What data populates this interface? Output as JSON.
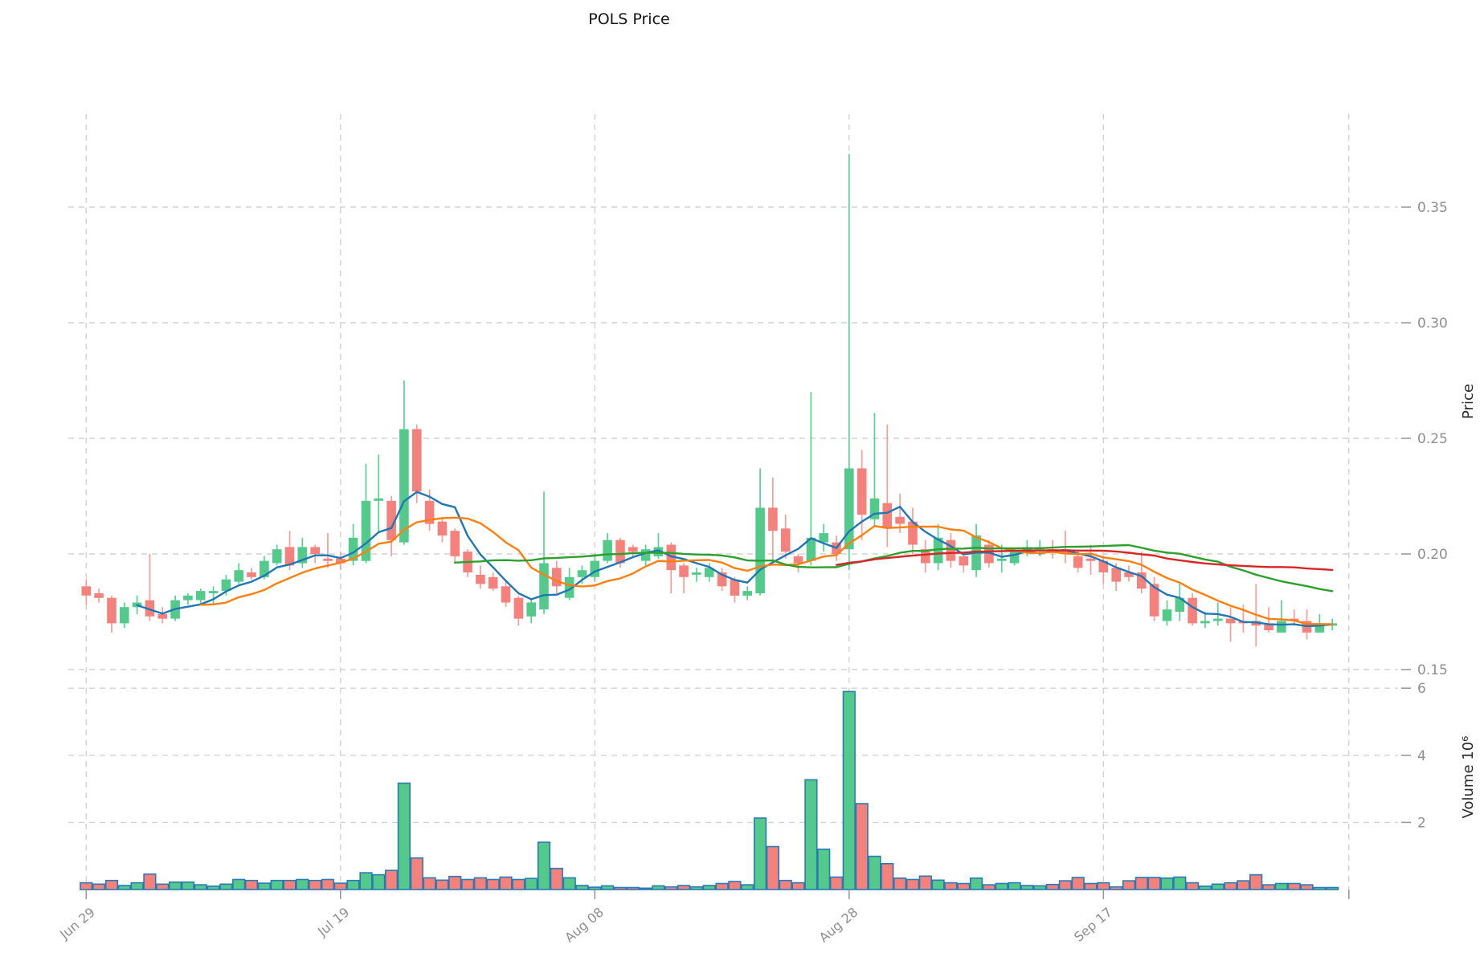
{
  "title": "POLS Price",
  "axes": {
    "price_label": "Price",
    "volume_label": "Volume  10⁶",
    "price_ticks": [
      {
        "value": 0.15,
        "label": "0.15"
      },
      {
        "value": 0.2,
        "label": "0.20"
      },
      {
        "value": 0.25,
        "label": "0.25"
      },
      {
        "value": 0.3,
        "label": "0.30"
      },
      {
        "value": 0.35,
        "label": "0.35"
      }
    ],
    "volume_ticks": [
      {
        "value": 2,
        "label": "2"
      },
      {
        "value": 4,
        "label": "4"
      },
      {
        "value": 6,
        "label": "6"
      }
    ],
    "x_ticks": [
      {
        "index": 0,
        "label": "Jun 29"
      },
      {
        "index": 20,
        "label": "Jul 19"
      },
      {
        "index": 40,
        "label": "Aug 08"
      },
      {
        "index": 60,
        "label": "Aug 28"
      },
      {
        "index": 80,
        "label": "Sep 17"
      },
      {
        "index": 99.3,
        "label": ""
      }
    ]
  },
  "colors": {
    "up_body": "#53ca8b",
    "up_wick": "#55d394",
    "down_body": "#f4817b",
    "down_wick": "#f59d98",
    "volume_edge": "#2a7ab5",
    "grid": "#d2d2d2",
    "tick_text": "#8e8e8e",
    "ma5": "#1f77b4",
    "ma10": "#ff7f0e",
    "ma30": "#2ca02c",
    "ma60": "#d62728"
  },
  "chart_data": {
    "type": "candlestick+volume",
    "title": "POLS Price",
    "ylabel_price": "Price",
    "ylabel_volume": "Volume 10^6",
    "price_ylim": [
      0.145,
      0.395
    ],
    "volume_ylim_millions": [
      0,
      6.6
    ],
    "grid": true,
    "moving_averages": [
      {
        "period": 5,
        "color": "#1f77b4"
      },
      {
        "period": 10,
        "color": "#ff7f0e"
      },
      {
        "period": 30,
        "color": "#2ca02c"
      },
      {
        "period": 60,
        "color": "#d62728"
      }
    ],
    "dates": [
      "Jun 29",
      "Jun 30",
      "Jul 01",
      "Jul 02",
      "Jul 03",
      "Jul 04",
      "Jul 05",
      "Jul 06",
      "Jul 07",
      "Jul 08",
      "Jul 09",
      "Jul 10",
      "Jul 11",
      "Jul 12",
      "Jul 13",
      "Jul 14",
      "Jul 15",
      "Jul 16",
      "Jul 17",
      "Jul 18",
      "Jul 19",
      "Jul 20",
      "Jul 21",
      "Jul 22",
      "Jul 23",
      "Jul 24",
      "Jul 25",
      "Jul 26",
      "Jul 27",
      "Jul 28",
      "Jul 29",
      "Jul 30",
      "Jul 31",
      "Aug 01",
      "Aug 02",
      "Aug 03",
      "Aug 04",
      "Aug 05",
      "Aug 06",
      "Aug 07",
      "Aug 08",
      "Aug 09",
      "Aug 10",
      "Aug 11",
      "Aug 12",
      "Aug 13",
      "Aug 14",
      "Aug 15",
      "Aug 16",
      "Aug 17",
      "Aug 18",
      "Aug 19",
      "Aug 20",
      "Aug 21",
      "Aug 22",
      "Aug 23",
      "Aug 24",
      "Aug 25",
      "Aug 26",
      "Aug 27",
      "Aug 28",
      "Aug 29",
      "Aug 30",
      "Aug 31",
      "Sep 01",
      "Sep 02",
      "Sep 03",
      "Sep 04",
      "Sep 05",
      "Sep 06",
      "Sep 07",
      "Sep 08",
      "Sep 09",
      "Sep 10",
      "Sep 11",
      "Sep 12",
      "Sep 13",
      "Sep 14",
      "Sep 15",
      "Sep 16",
      "Sep 17",
      "Sep 18",
      "Sep 19",
      "Sep 20",
      "Sep 21",
      "Sep 22",
      "Sep 23",
      "Sep 24",
      "Sep 25",
      "Sep 26",
      "Sep 27",
      "Sep 28",
      "Sep 29",
      "Sep 30",
      "Oct 01",
      "Oct 02",
      "Oct 03",
      "Oct 04",
      "Oct 05"
    ],
    "ohlc": [
      [
        0.186,
        0.189,
        0.178,
        0.182
      ],
      [
        0.183,
        0.185,
        0.179,
        0.181
      ],
      [
        0.181,
        0.182,
        0.166,
        0.17
      ],
      [
        0.17,
        0.179,
        0.168,
        0.177
      ],
      [
        0.177,
        0.182,
        0.174,
        0.179
      ],
      [
        0.18,
        0.2,
        0.171,
        0.173
      ],
      [
        0.174,
        0.177,
        0.17,
        0.172
      ],
      [
        0.172,
        0.182,
        0.171,
        0.18
      ],
      [
        0.18,
        0.183,
        0.178,
        0.182
      ],
      [
        0.18,
        0.185,
        0.178,
        0.184
      ],
      [
        0.183,
        0.186,
        0.178,
        0.184
      ],
      [
        0.184,
        0.191,
        0.182,
        0.189
      ],
      [
        0.188,
        0.196,
        0.187,
        0.193
      ],
      [
        0.192,
        0.194,
        0.189,
        0.19
      ],
      [
        0.19,
        0.199,
        0.189,
        0.197
      ],
      [
        0.196,
        0.204,
        0.195,
        0.202
      ],
      [
        0.203,
        0.21,
        0.193,
        0.195
      ],
      [
        0.196,
        0.207,
        0.194,
        0.203
      ],
      [
        0.203,
        0.204,
        0.196,
        0.2
      ],
      [
        0.198,
        0.209,
        0.194,
        0.197
      ],
      [
        0.198,
        0.201,
        0.193,
        0.196
      ],
      [
        0.197,
        0.213,
        0.195,
        0.207
      ],
      [
        0.197,
        0.239,
        0.196,
        0.223
      ],
      [
        0.223,
        0.243,
        0.209,
        0.224
      ],
      [
        0.223,
        0.225,
        0.199,
        0.206
      ],
      [
        0.205,
        0.275,
        0.204,
        0.254
      ],
      [
        0.254,
        0.256,
        0.222,
        0.227
      ],
      [
        0.223,
        0.228,
        0.21,
        0.213
      ],
      [
        0.214,
        0.216,
        0.205,
        0.208
      ],
      [
        0.21,
        0.211,
        0.196,
        0.199
      ],
      [
        0.201,
        0.202,
        0.19,
        0.192
      ],
      [
        0.191,
        0.195,
        0.185,
        0.187
      ],
      [
        0.19,
        0.192,
        0.184,
        0.185
      ],
      [
        0.186,
        0.188,
        0.177,
        0.179
      ],
      [
        0.181,
        0.182,
        0.169,
        0.172
      ],
      [
        0.173,
        0.18,
        0.17,
        0.179
      ],
      [
        0.176,
        0.227,
        0.174,
        0.196
      ],
      [
        0.194,
        0.197,
        0.183,
        0.186
      ],
      [
        0.181,
        0.194,
        0.18,
        0.19
      ],
      [
        0.19,
        0.195,
        0.187,
        0.193
      ],
      [
        0.19,
        0.2,
        0.188,
        0.197
      ],
      [
        0.197,
        0.209,
        0.196,
        0.206
      ],
      [
        0.206,
        0.207,
        0.194,
        0.196
      ],
      [
        0.203,
        0.204,
        0.199,
        0.201
      ],
      [
        0.197,
        0.204,
        0.195,
        0.202
      ],
      [
        0.199,
        0.209,
        0.198,
        0.203
      ],
      [
        0.204,
        0.205,
        0.183,
        0.193
      ],
      [
        0.195,
        0.196,
        0.183,
        0.19
      ],
      [
        0.191,
        0.194,
        0.188,
        0.192
      ],
      [
        0.19,
        0.196,
        0.188,
        0.194
      ],
      [
        0.192,
        0.194,
        0.184,
        0.186
      ],
      [
        0.189,
        0.19,
        0.179,
        0.182
      ],
      [
        0.182,
        0.186,
        0.18,
        0.184
      ],
      [
        0.183,
        0.237,
        0.182,
        0.22
      ],
      [
        0.22,
        0.233,
        0.196,
        0.21
      ],
      [
        0.211,
        0.217,
        0.198,
        0.201
      ],
      [
        0.199,
        0.2,
        0.192,
        0.196
      ],
      [
        0.197,
        0.27,
        0.195,
        0.207
      ],
      [
        0.205,
        0.213,
        0.201,
        0.209
      ],
      [
        0.205,
        0.208,
        0.197,
        0.2
      ],
      [
        0.202,
        0.373,
        0.193,
        0.237
      ],
      [
        0.237,
        0.245,
        0.206,
        0.217
      ],
      [
        0.215,
        0.261,
        0.212,
        0.224
      ],
      [
        0.222,
        0.256,
        0.203,
        0.211
      ],
      [
        0.216,
        0.226,
        0.209,
        0.213
      ],
      [
        0.214,
        0.22,
        0.2,
        0.204
      ],
      [
        0.202,
        0.206,
        0.192,
        0.196
      ],
      [
        0.196,
        0.213,
        0.193,
        0.207
      ],
      [
        0.206,
        0.209,
        0.194,
        0.197
      ],
      [
        0.199,
        0.2,
        0.192,
        0.195
      ],
      [
        0.193,
        0.213,
        0.19,
        0.208
      ],
      [
        0.204,
        0.206,
        0.194,
        0.196
      ],
      [
        0.197,
        0.204,
        0.192,
        0.198
      ],
      [
        0.196,
        0.202,
        0.195,
        0.201
      ],
      [
        0.201,
        0.206,
        0.199,
        0.203
      ],
      [
        0.202,
        0.206,
        0.199,
        0.203
      ],
      [
        0.202,
        0.206,
        0.198,
        0.201
      ],
      [
        0.202,
        0.21,
        0.196,
        0.2
      ],
      [
        0.199,
        0.201,
        0.192,
        0.194
      ],
      [
        0.198,
        0.204,
        0.191,
        0.197
      ],
      [
        0.197,
        0.199,
        0.187,
        0.192
      ],
      [
        0.194,
        0.196,
        0.184,
        0.188
      ],
      [
        0.192,
        0.195,
        0.188,
        0.19
      ],
      [
        0.192,
        0.201,
        0.183,
        0.185
      ],
      [
        0.187,
        0.19,
        0.171,
        0.173
      ],
      [
        0.171,
        0.18,
        0.169,
        0.176
      ],
      [
        0.175,
        0.188,
        0.171,
        0.181
      ],
      [
        0.181,
        0.183,
        0.169,
        0.17
      ],
      [
        0.17,
        0.175,
        0.168,
        0.171
      ],
      [
        0.171,
        0.179,
        0.169,
        0.172
      ],
      [
        0.172,
        0.177,
        0.162,
        0.17
      ],
      [
        0.171,
        0.178,
        0.166,
        0.17
      ],
      [
        0.171,
        0.187,
        0.16,
        0.169
      ],
      [
        0.17,
        0.177,
        0.166,
        0.167
      ],
      [
        0.166,
        0.18,
        0.166,
        0.171
      ],
      [
        0.172,
        0.176,
        0.169,
        0.171
      ],
      [
        0.171,
        0.176,
        0.163,
        0.166
      ],
      [
        0.166,
        0.174,
        0.166,
        0.17
      ],
      [
        0.169,
        0.172,
        0.167,
        0.17
      ]
    ],
    "volume_millions": [
      0.2,
      0.16,
      0.27,
      0.12,
      0.2,
      0.46,
      0.16,
      0.22,
      0.22,
      0.14,
      0.1,
      0.16,
      0.3,
      0.27,
      0.19,
      0.27,
      0.27,
      0.3,
      0.27,
      0.3,
      0.19,
      0.27,
      0.5,
      0.44,
      0.57,
      3.17,
      0.94,
      0.35,
      0.28,
      0.39,
      0.3,
      0.35,
      0.3,
      0.37,
      0.3,
      0.33,
      1.41,
      0.63,
      0.35,
      0.12,
      0.07,
      0.11,
      0.06,
      0.06,
      0.04,
      0.11,
      0.08,
      0.12,
      0.08,
      0.12,
      0.18,
      0.24,
      0.14,
      2.13,
      1.28,
      0.27,
      0.2,
      3.27,
      1.2,
      0.37,
      5.9,
      2.56,
      0.99,
      0.77,
      0.34,
      0.3,
      0.4,
      0.28,
      0.2,
      0.18,
      0.34,
      0.14,
      0.18,
      0.2,
      0.12,
      0.11,
      0.15,
      0.26,
      0.36,
      0.18,
      0.2,
      0.08,
      0.26,
      0.36,
      0.36,
      0.34,
      0.37,
      0.2,
      0.1,
      0.16,
      0.2,
      0.26,
      0.44,
      0.14,
      0.18,
      0.18,
      0.14,
      0.06,
      0.06
    ]
  }
}
